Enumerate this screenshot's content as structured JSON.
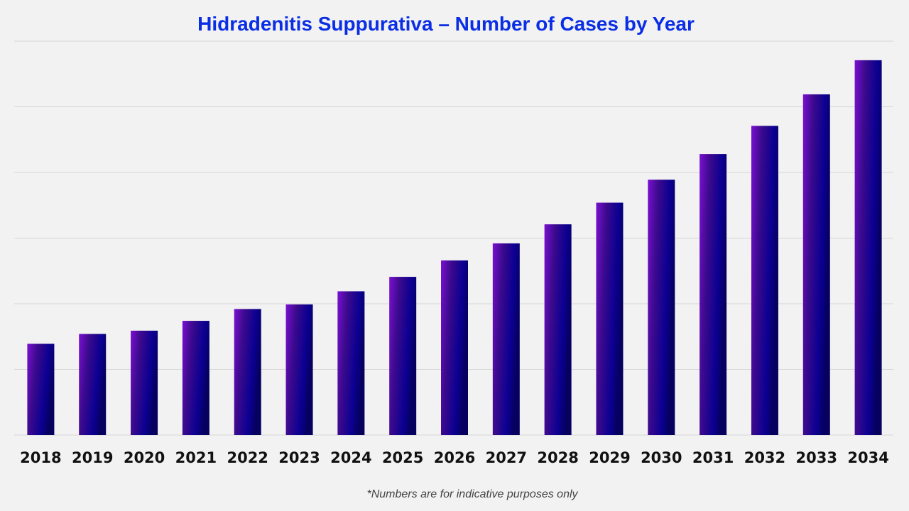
{
  "chart_data": {
    "type": "bar",
    "title": "Hidradenitis Suppurativa – Number of Cases by Year",
    "xlabel": "",
    "ylabel": "",
    "categories": [
      "2018",
      "2019",
      "2020",
      "2021",
      "2022",
      "2023",
      "2024",
      "2025",
      "2026",
      "2027",
      "2028",
      "2029",
      "2030",
      "2031",
      "2032",
      "2033",
      "2034"
    ],
    "values": [
      1.39,
      1.54,
      1.59,
      1.74,
      1.92,
      1.99,
      2.19,
      2.41,
      2.66,
      2.92,
      3.21,
      3.54,
      3.89,
      4.28,
      4.71,
      5.19,
      5.71
    ],
    "ylim": [
      0,
      6
    ],
    "y_tick_labels_shown": false,
    "grid": true,
    "legend": "none",
    "bar_gradient": [
      "#7b10d2",
      "#3c0a8c",
      "#0b0092",
      "#06005e"
    ],
    "title_color": "#0a2de6",
    "gridline_color": "#d6d6d6",
    "footnote": "*Numbers are for indicative purposes only"
  }
}
